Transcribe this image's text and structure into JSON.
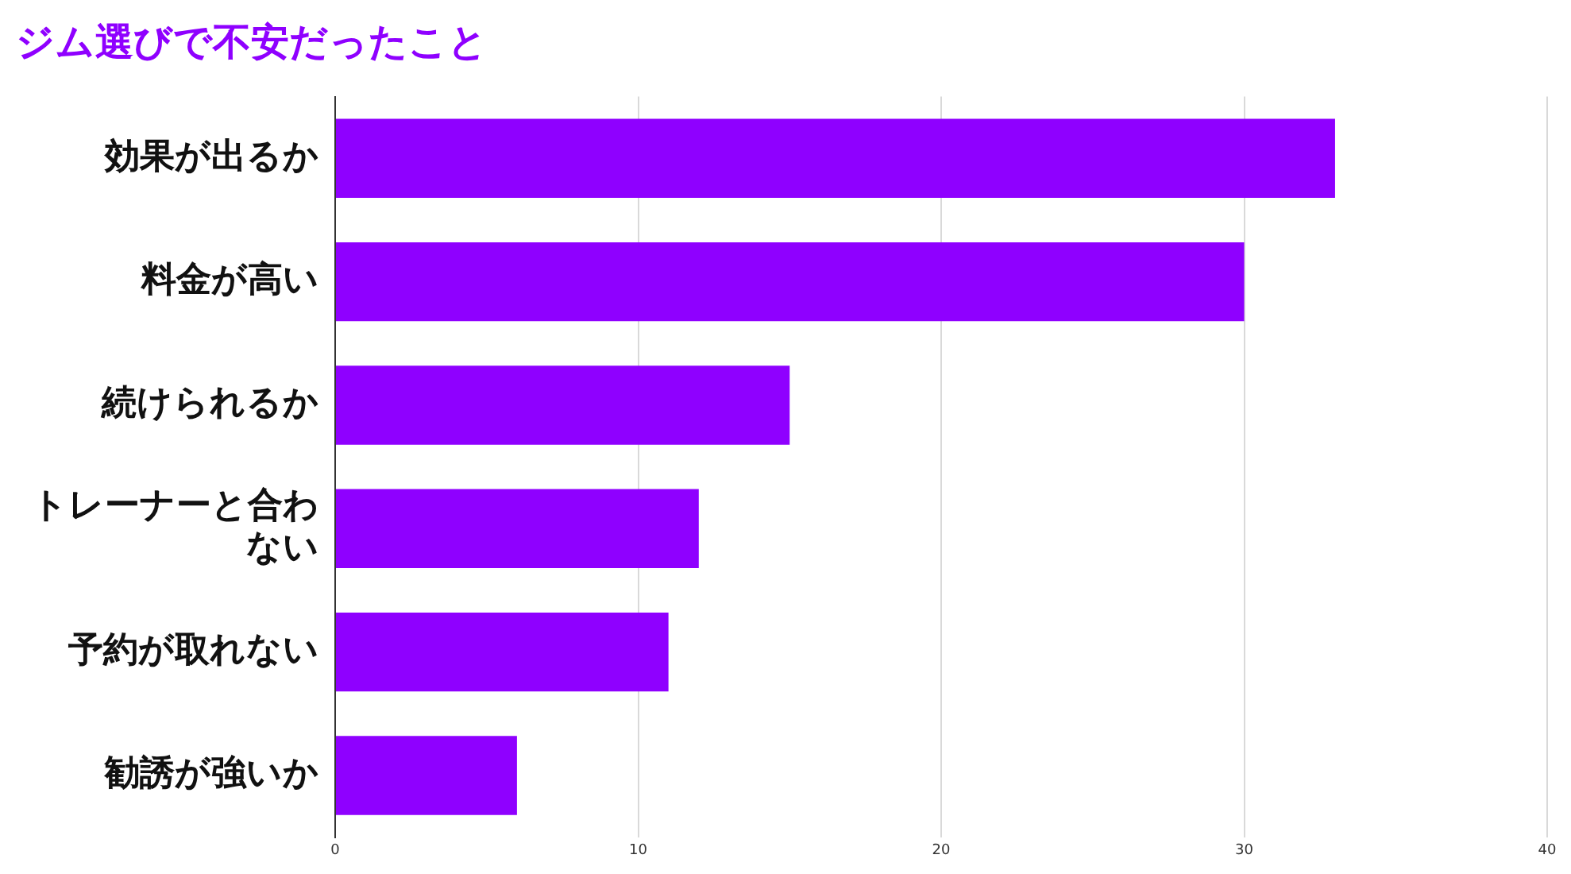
{
  "chart_data": {
    "type": "bar",
    "orientation": "horizontal",
    "title": "ジム選びで不安だったこと",
    "categories": [
      "効果が出るか",
      "料金が高い",
      "続けられるか",
      "トレーナーと合わない",
      "予約が取れない",
      "勧誘が強いか"
    ],
    "values": [
      33,
      30,
      15,
      12,
      11,
      6
    ],
    "color": "#8f00ff",
    "xlim": [
      0,
      40
    ],
    "xticks": [
      0,
      10,
      20,
      30,
      40
    ],
    "grid": "x",
    "legend": false
  }
}
